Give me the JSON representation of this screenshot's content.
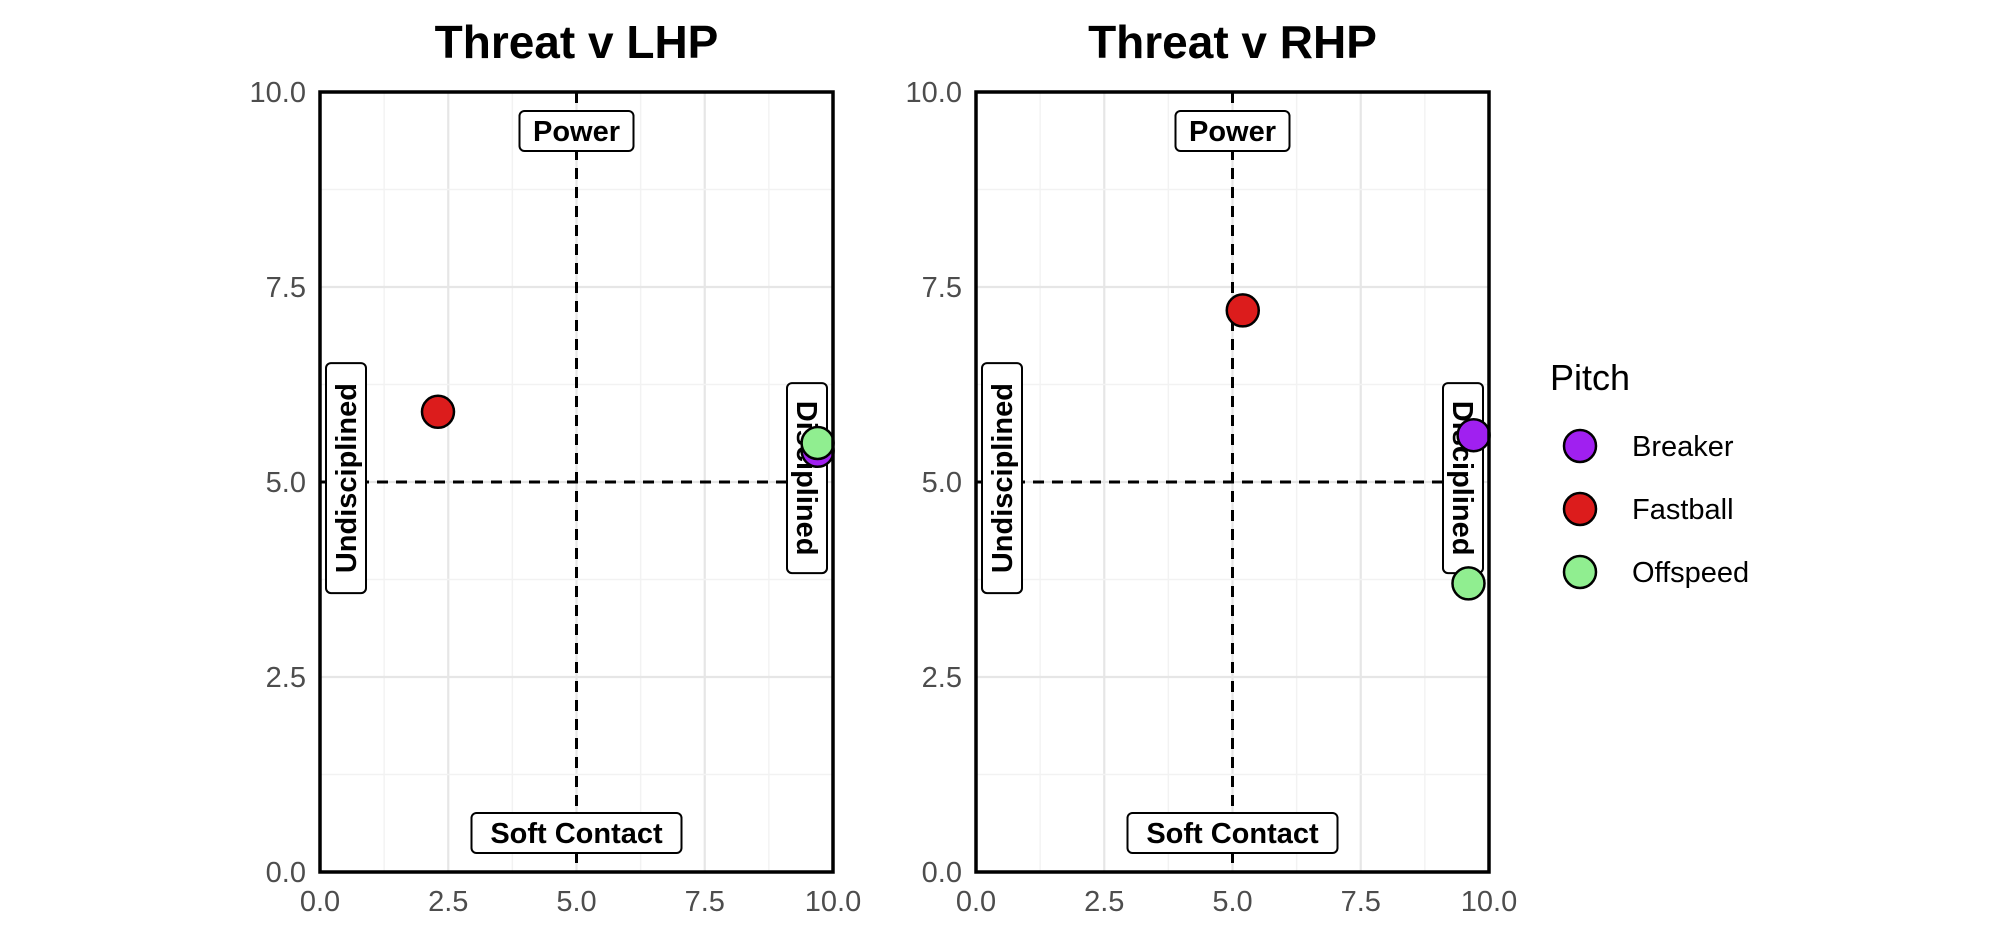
{
  "chart_data": {
    "type": "scatter",
    "legend": {
      "title": "Pitch",
      "position": "right",
      "entries": [
        {
          "name": "Breaker",
          "color": "#a020f0"
        },
        {
          "name": "Fastball",
          "color": "#dc1c1c"
        },
        {
          "name": "Offspeed",
          "color": "#90ee90"
        }
      ]
    },
    "panels": [
      {
        "title": "Threat v LHP",
        "xlim": [
          0,
          10
        ],
        "ylim": [
          0,
          10
        ],
        "xticks": [
          "0.0",
          "2.5",
          "5.0",
          "7.5",
          "10.0"
        ],
        "yticks": [
          "0.0",
          "2.5",
          "5.0",
          "7.5",
          "10.0"
        ],
        "reference_lines": {
          "x": 5,
          "y": 5
        },
        "quadrant_labels": {
          "top": "Power",
          "bottom": "Soft Contact",
          "left": "Undisciplined",
          "right": "Disciplined"
        },
        "points": [
          {
            "pitch": "Breaker",
            "x": 9.7,
            "y": 5.4
          },
          {
            "pitch": "Fastball",
            "x": 2.3,
            "y": 5.9
          },
          {
            "pitch": "Offspeed",
            "x": 9.7,
            "y": 5.5
          }
        ]
      },
      {
        "title": "Threat v RHP",
        "xlim": [
          0,
          10
        ],
        "ylim": [
          0,
          10
        ],
        "xticks": [
          "0.0",
          "2.5",
          "5.0",
          "7.5",
          "10.0"
        ],
        "yticks": [
          "0.0",
          "2.5",
          "5.0",
          "7.5",
          "10.0"
        ],
        "reference_lines": {
          "x": 5,
          "y": 5
        },
        "quadrant_labels": {
          "top": "Power",
          "bottom": "Soft Contact",
          "left": "Undisciplined",
          "right": "Disciplined"
        },
        "points": [
          {
            "pitch": "Breaker",
            "x": 9.7,
            "y": 5.6
          },
          {
            "pitch": "Fastball",
            "x": 5.2,
            "y": 7.2
          },
          {
            "pitch": "Offspeed",
            "x": 9.6,
            "y": 3.7
          }
        ]
      }
    ]
  }
}
